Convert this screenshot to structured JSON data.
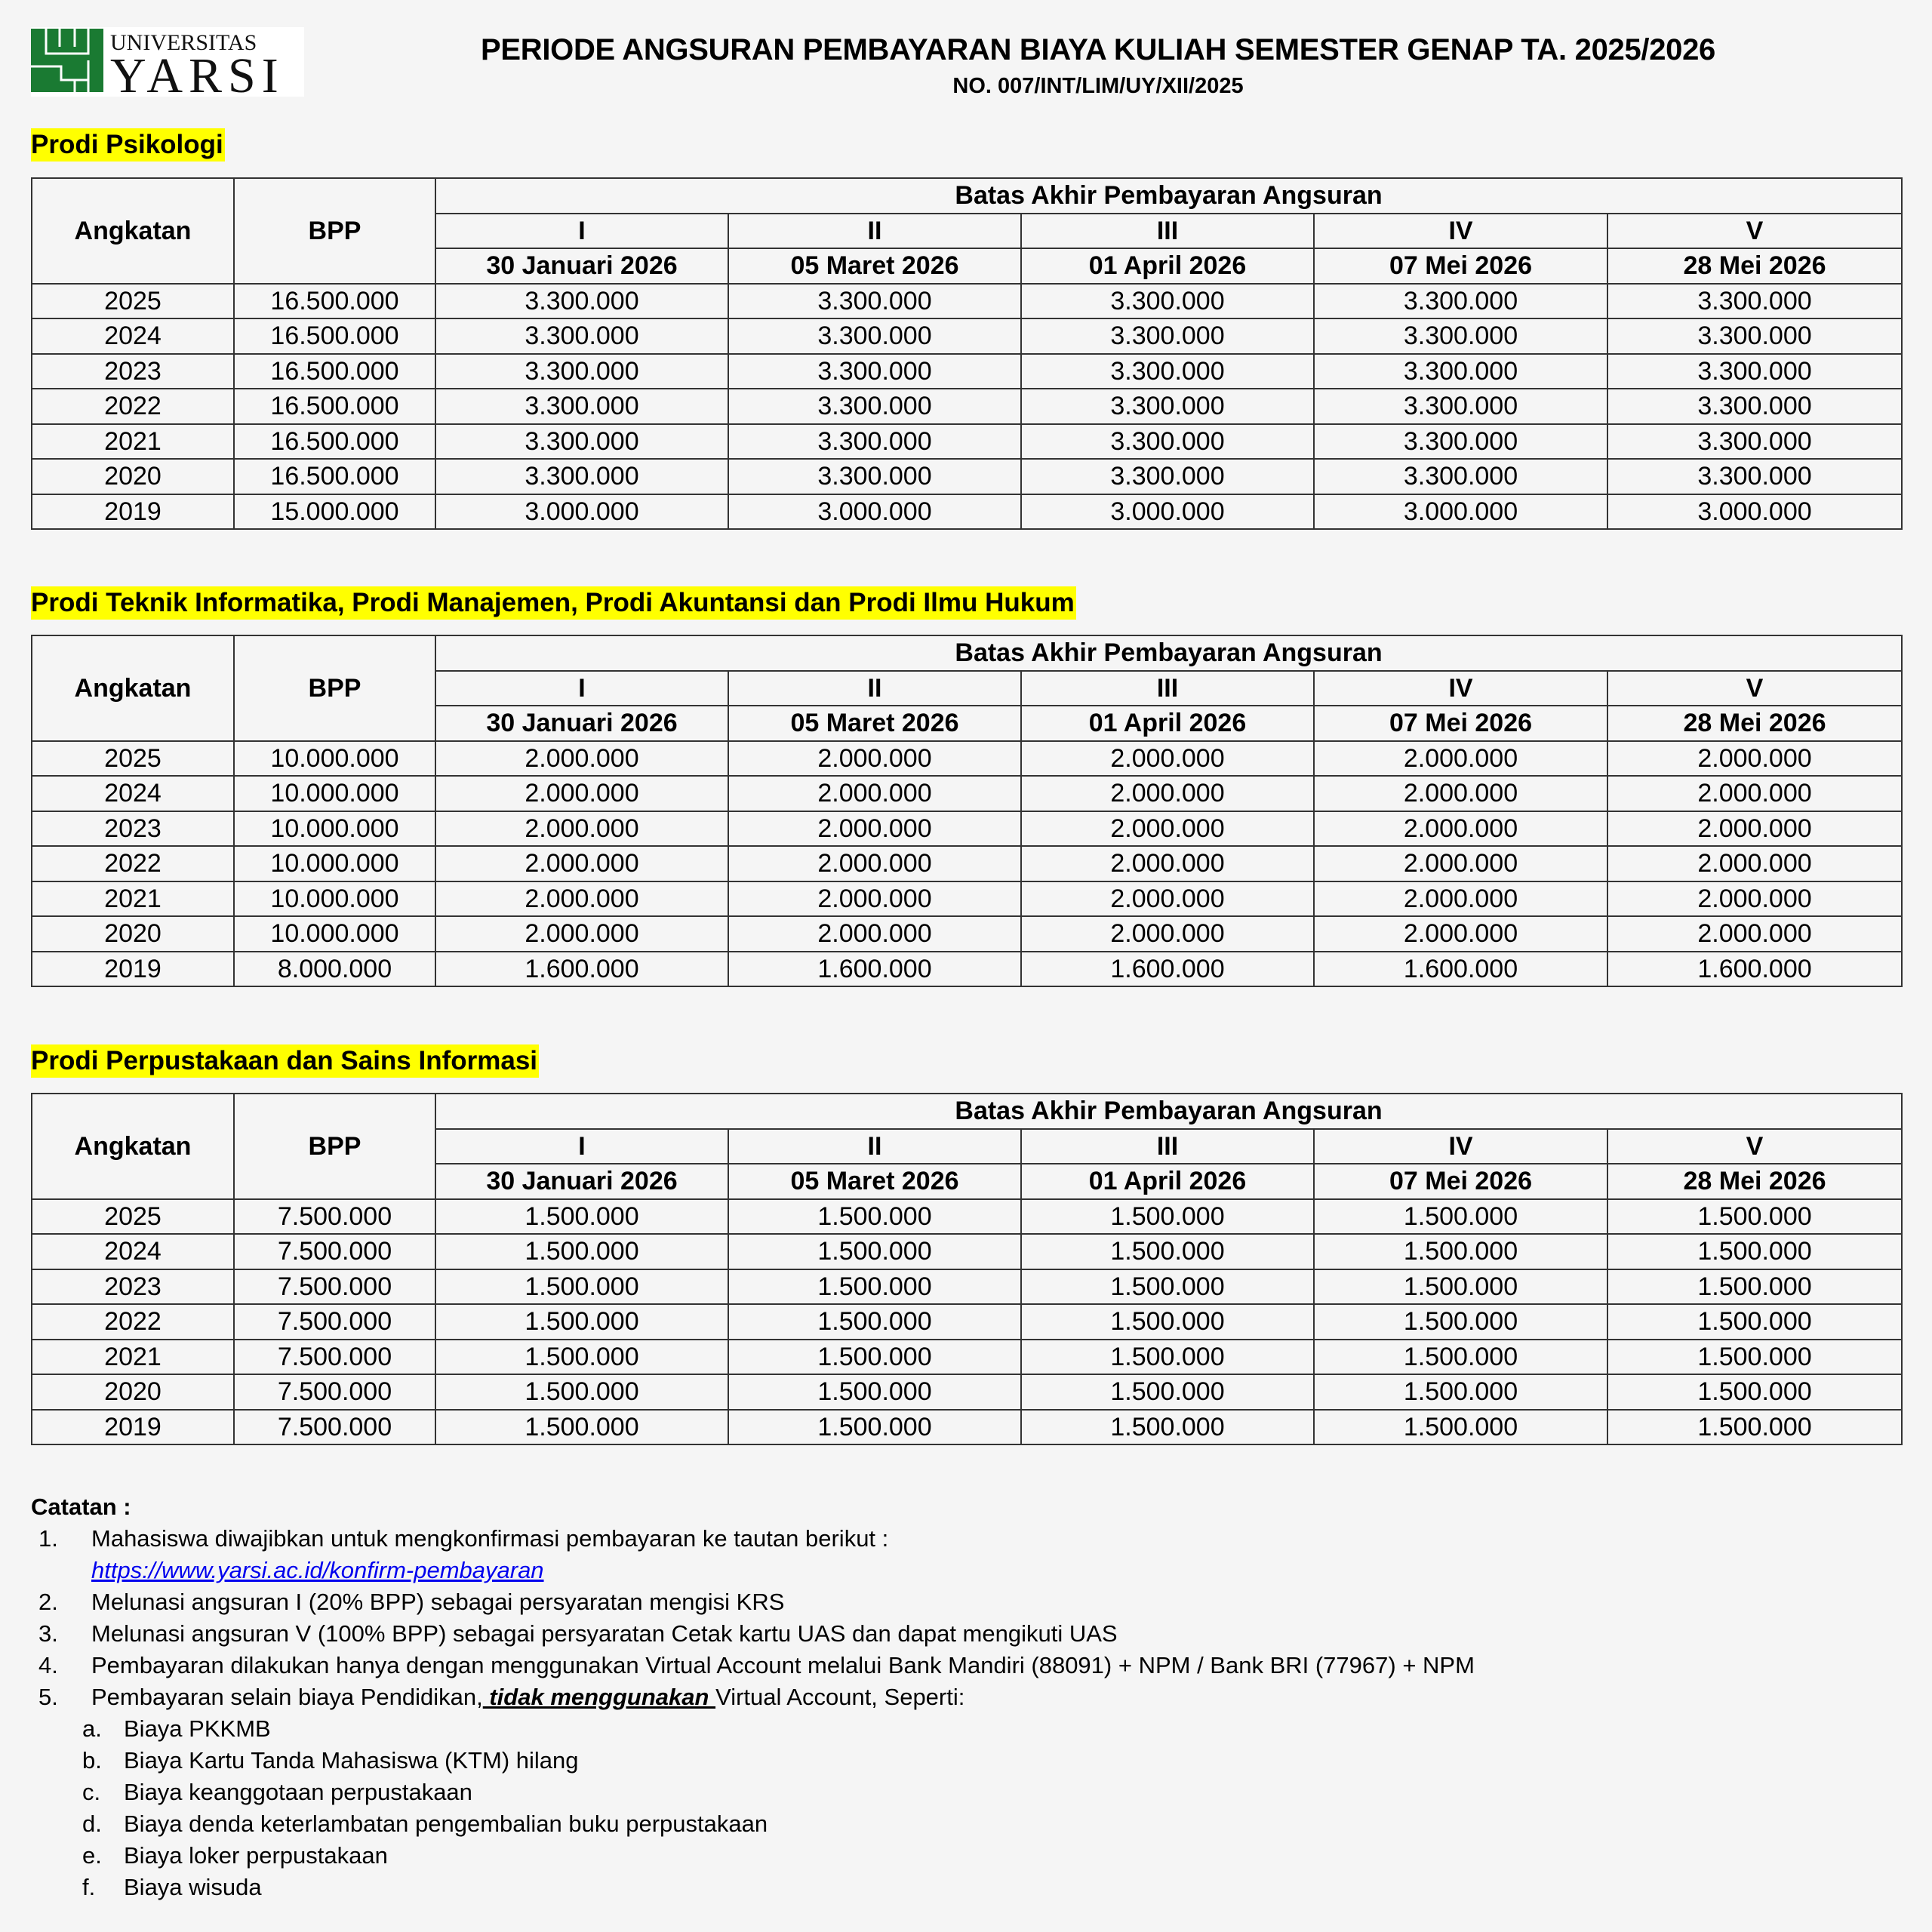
{
  "header": {
    "logo_text_top": "UNIVERSITAS",
    "logo_text_main": "YARSI",
    "title": "PERIODE ANGSURAN PEMBAYARAN BIAYA KULIAH SEMESTER GENAP TA. 2025/2026",
    "subtitle": "NO. 007/INT/LIM/UY/XII/2025"
  },
  "colors": {
    "logo_green": "#1a7a32",
    "highlight": "#ffff00",
    "link": "#0000ee"
  },
  "table_headers": {
    "angkatan": "Angkatan",
    "bpp": "BPP",
    "group": "Batas Akhir Pembayaran Angsuran",
    "installments": [
      "I",
      "II",
      "III",
      "IV",
      "V"
    ],
    "dates": [
      "30 Januari 2026",
      "05 Maret 2026",
      "01 April 2026",
      "07 Mei 2026",
      "28 Mei 2026"
    ]
  },
  "sections": [
    {
      "title": "Prodi Psikologi",
      "rows": [
        [
          "2025",
          "16.500.000",
          "3.300.000",
          "3.300.000",
          "3.300.000",
          "3.300.000",
          "3.300.000"
        ],
        [
          "2024",
          "16.500.000",
          "3.300.000",
          "3.300.000",
          "3.300.000",
          "3.300.000",
          "3.300.000"
        ],
        [
          "2023",
          "16.500.000",
          "3.300.000",
          "3.300.000",
          "3.300.000",
          "3.300.000",
          "3.300.000"
        ],
        [
          "2022",
          "16.500.000",
          "3.300.000",
          "3.300.000",
          "3.300.000",
          "3.300.000",
          "3.300.000"
        ],
        [
          "2021",
          "16.500.000",
          "3.300.000",
          "3.300.000",
          "3.300.000",
          "3.300.000",
          "3.300.000"
        ],
        [
          "2020",
          "16.500.000",
          "3.300.000",
          "3.300.000",
          "3.300.000",
          "3.300.000",
          "3.300.000"
        ],
        [
          "2019",
          "15.000.000",
          "3.000.000",
          "3.000.000",
          "3.000.000",
          "3.000.000",
          "3.000.000"
        ]
      ]
    },
    {
      "title": "Prodi Teknik Informatika, Prodi Manajemen, Prodi Akuntansi dan Prodi Ilmu Hukum",
      "rows": [
        [
          "2025",
          "10.000.000",
          "2.000.000",
          "2.000.000",
          "2.000.000",
          "2.000.000",
          "2.000.000"
        ],
        [
          "2024",
          "10.000.000",
          "2.000.000",
          "2.000.000",
          "2.000.000",
          "2.000.000",
          "2.000.000"
        ],
        [
          "2023",
          "10.000.000",
          "2.000.000",
          "2.000.000",
          "2.000.000",
          "2.000.000",
          "2.000.000"
        ],
        [
          "2022",
          "10.000.000",
          "2.000.000",
          "2.000.000",
          "2.000.000",
          "2.000.000",
          "2.000.000"
        ],
        [
          "2021",
          "10.000.000",
          "2.000.000",
          "2.000.000",
          "2.000.000",
          "2.000.000",
          "2.000.000"
        ],
        [
          "2020",
          "10.000.000",
          "2.000.000",
          "2.000.000",
          "2.000.000",
          "2.000.000",
          "2.000.000"
        ],
        [
          "2019",
          "8.000.000",
          "1.600.000",
          "1.600.000",
          "1.600.000",
          "1.600.000",
          "1.600.000"
        ]
      ]
    },
    {
      "title": "Prodi Perpustakaan dan Sains Informasi",
      "rows": [
        [
          "2025",
          "7.500.000",
          "1.500.000",
          "1.500.000",
          "1.500.000",
          "1.500.000",
          "1.500.000"
        ],
        [
          "2024",
          "7.500.000",
          "1.500.000",
          "1.500.000",
          "1.500.000",
          "1.500.000",
          "1.500.000"
        ],
        [
          "2023",
          "7.500.000",
          "1.500.000",
          "1.500.000",
          "1.500.000",
          "1.500.000",
          "1.500.000"
        ],
        [
          "2022",
          "7.500.000",
          "1.500.000",
          "1.500.000",
          "1.500.000",
          "1.500.000",
          "1.500.000"
        ],
        [
          "2021",
          "7.500.000",
          "1.500.000",
          "1.500.000",
          "1.500.000",
          "1.500.000",
          "1.500.000"
        ],
        [
          "2020",
          "7.500.000",
          "1.500.000",
          "1.500.000",
          "1.500.000",
          "1.500.000",
          "1.500.000"
        ],
        [
          "2019",
          "7.500.000",
          "1.500.000",
          "1.500.000",
          "1.500.000",
          "1.500.000",
          "1.500.000"
        ]
      ]
    }
  ],
  "notes": {
    "heading": "Catatan :",
    "items": [
      {
        "num": "1.",
        "text": "Mahasiswa diwajibkan untuk mengkonfirmasi pembayaran ke tautan berikut :"
      },
      {
        "num": "2.",
        "text": "Melunasi angsuran I (20% BPP) sebagai persyaratan mengisi KRS"
      },
      {
        "num": "3.",
        "text": "Melunasi angsuran V (100% BPP) sebagai persyaratan Cetak kartu UAS dan dapat mengikuti UAS"
      },
      {
        "num": "4.",
        "text": "Pembayaran dilakukan hanya dengan menggunakan Virtual Account melalui Bank Mandiri (88091) + NPM / Bank BRI (77967) + NPM"
      },
      {
        "num": "5.",
        "text_before": "Pembayaran selain biaya Pendidikan,",
        "text_emphasis": " tidak menggunakan ",
        "text_after": "Virtual Account, Seperti:"
      }
    ],
    "link": "https://www.yarsi.ac.id/konfirm-pembayaran",
    "subitems": [
      {
        "num": "a.",
        "text": "Biaya PKKMB"
      },
      {
        "num": "b.",
        "text": "Biaya Kartu Tanda Mahasiswa (KTM) hilang"
      },
      {
        "num": "c.",
        "text": "Biaya keanggotaan perpustakaan"
      },
      {
        "num": "d.",
        "text": "Biaya denda keterlambatan pengembalian buku perpustakaan"
      },
      {
        "num": "e.",
        "text": "Biaya loker perpustakaan"
      },
      {
        "num": "f.",
        "text": "Biaya wisuda"
      }
    ]
  }
}
